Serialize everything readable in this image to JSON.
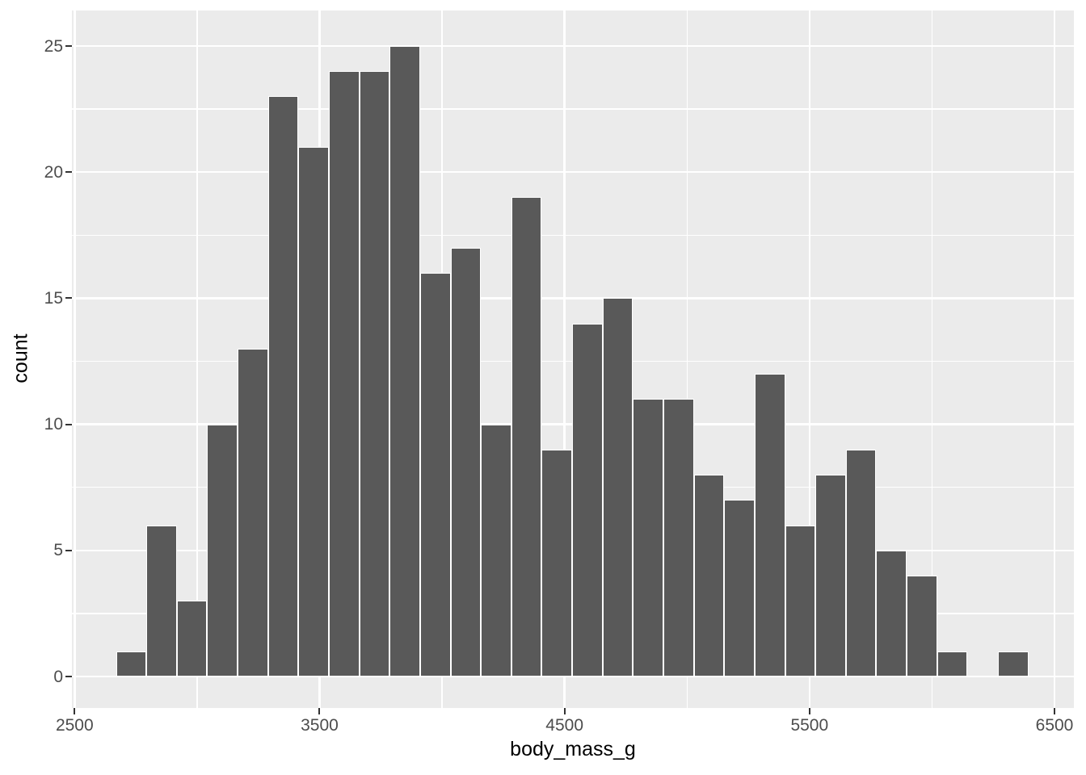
{
  "chart_data": {
    "type": "bar",
    "subtype": "histogram",
    "title": "",
    "xlabel": "body_mass_g",
    "ylabel": "count",
    "x_ticks": [
      2500,
      3500,
      4500,
      5500,
      6500
    ],
    "x_minor_gridlines": [
      3000,
      4000,
      5000,
      6000
    ],
    "y_ticks": [
      0,
      5,
      10,
      15,
      20,
      25
    ],
    "y_minor_gridlines": [
      2.5,
      7.5,
      12.5,
      17.5,
      22.5
    ],
    "xlim": [
      2490,
      6580
    ],
    "ylim": [
      -1.25,
      26.4
    ],
    "bin_origin": 2669,
    "bin_width": 124.14,
    "counts": [
      1,
      6,
      3,
      10,
      13,
      23,
      21,
      24,
      24,
      25,
      16,
      17,
      10,
      19,
      9,
      14,
      15,
      11,
      11,
      8,
      7,
      12,
      6,
      8,
      9,
      5,
      4,
      1,
      0,
      1
    ],
    "grid": true,
    "legend": false
  },
  "colors": {
    "figure_bg": "#FFFFFF",
    "panel_bg": "#EBEBEB",
    "gridline": "#FFFFFF",
    "bar_fill": "#595959",
    "bar_stroke": "#FFFFFF",
    "tick_mark": "#333333",
    "tick_label": "#4D4D4D",
    "axis_title": "#000000"
  }
}
